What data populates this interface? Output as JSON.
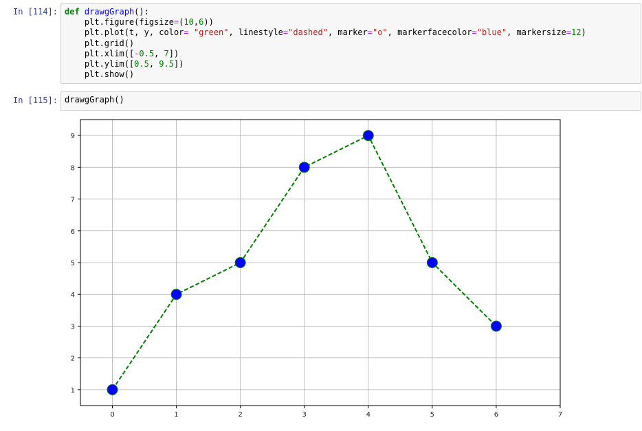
{
  "cells": [
    {
      "prompt": "In [114]:",
      "lines": [
        [
          [
            "def",
            "kw"
          ],
          [
            " ",
            ""
          ],
          [
            "drawgGraph",
            "fn"
          ],
          [
            "():",
            ""
          ]
        ],
        [
          [
            "    plt.figure(figsize",
            ""
          ],
          [
            "=",
            "op"
          ],
          [
            "(",
            ""
          ],
          [
            "10",
            "num"
          ],
          [
            ",",
            ""
          ],
          [
            "6",
            "num"
          ],
          [
            "))",
            ""
          ]
        ],
        [
          [
            "    plt.plot(t, y, color",
            ""
          ],
          [
            "=",
            "op"
          ],
          [
            " ",
            ""
          ],
          [
            "\"green\"",
            "str"
          ],
          [
            ", linestyle",
            ""
          ],
          [
            "=",
            "op"
          ],
          [
            "\"dashed\"",
            "str"
          ],
          [
            ", marker",
            ""
          ],
          [
            "=",
            "op"
          ],
          [
            "\"o\"",
            "str"
          ],
          [
            ", markerfacecolor",
            ""
          ],
          [
            "=",
            "op"
          ],
          [
            "\"blue\"",
            "str"
          ],
          [
            ", markersize",
            ""
          ],
          [
            "=",
            "op"
          ],
          [
            "12",
            "num"
          ],
          [
            ")",
            ""
          ]
        ],
        [
          [
            "    plt.grid()",
            ""
          ]
        ],
        [
          [
            "    plt.xlim([",
            ""
          ],
          [
            "-",
            "op"
          ],
          [
            "0.5",
            "num"
          ],
          [
            ", ",
            ""
          ],
          [
            "7",
            "num"
          ],
          [
            "])",
            ""
          ]
        ],
        [
          [
            "    plt.ylim([",
            ""
          ],
          [
            "0.5",
            "num"
          ],
          [
            ", ",
            ""
          ],
          [
            "9.5",
            "num"
          ],
          [
            "])",
            ""
          ]
        ],
        [
          [
            "    plt.show()",
            ""
          ]
        ]
      ]
    },
    {
      "prompt": "In [115]:",
      "lines": [
        [
          [
            "drawgGraph()",
            ""
          ]
        ]
      ]
    }
  ],
  "chart_data": {
    "type": "line",
    "x": [
      0,
      1,
      2,
      3,
      4,
      5,
      6
    ],
    "y": [
      1,
      4,
      5,
      8,
      9,
      5,
      3
    ],
    "xlim": [
      -0.5,
      7
    ],
    "ylim": [
      0.5,
      9.5
    ],
    "xticks": [
      0,
      1,
      2,
      3,
      4,
      5,
      6,
      7
    ],
    "yticks": [
      1,
      2,
      3,
      4,
      5,
      6,
      7,
      8,
      9
    ],
    "grid": true,
    "line_color": "#008000",
    "line_style": "dashed",
    "marker": "circle",
    "marker_face_color": "#0000ff",
    "marker_edge_color": "#008000"
  }
}
